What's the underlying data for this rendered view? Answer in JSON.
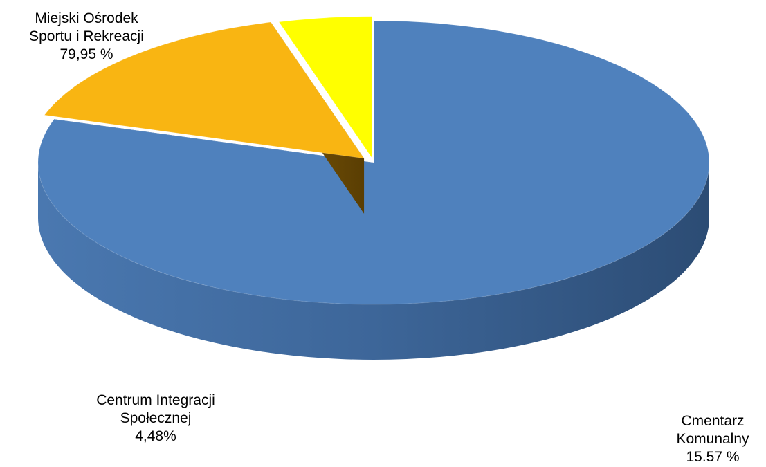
{
  "chart_data": {
    "type": "pie",
    "style": "3d-exploded",
    "slices": [
      {
        "name_lines": [
          "Miejski Ośrodek",
          "Sportu i Rekreacji"
        ],
        "value": 79.95,
        "label_text": "79,95 %",
        "color": "#4F81BD"
      },
      {
        "name_lines": [
          "Cmentarz",
          "Komunalny"
        ],
        "value": 15.57,
        "label_text": "15.57 %",
        "color": "#F9B512"
      },
      {
        "name_lines": [
          "Centrum Integracji",
          "Społecznej"
        ],
        "value": 4.48,
        "label_text": "4,48%",
        "color": "#FFFF00"
      }
    ]
  }
}
